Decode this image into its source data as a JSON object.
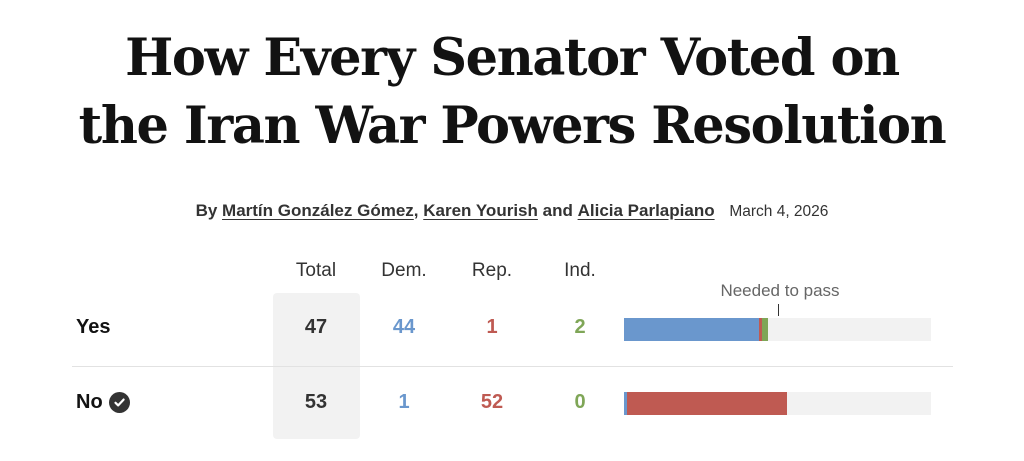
{
  "headline": {
    "line1": "How Every Senator Voted on",
    "line2": "the Iran War Powers Resolution"
  },
  "byline": {
    "by": "By",
    "authors": [
      "Martín González Gómez",
      "Karen Yourish",
      "Alicia Parlapiano"
    ],
    "separator": ",",
    "and": "and",
    "date": "March 4, 2026"
  },
  "table": {
    "headers": {
      "total": "Total",
      "dem": "Dem.",
      "rep": "Rep.",
      "ind": "Ind."
    },
    "needed_label": "Needed to pass",
    "needed_threshold": 50,
    "seat_total": 100,
    "rows": [
      {
        "label": "Yes",
        "passed": false,
        "total": "47",
        "dem": "44",
        "rep": "1",
        "ind": "2"
      },
      {
        "label": "No",
        "passed": true,
        "total": "53",
        "dem": "1",
        "rep": "52",
        "ind": "0"
      }
    ]
  },
  "colors": {
    "dem": "#6a97cd",
    "rep": "#bf5a52",
    "ind": "#7fa657",
    "track": "#f2f2f2",
    "check_icon": "check-circle-icon"
  }
}
